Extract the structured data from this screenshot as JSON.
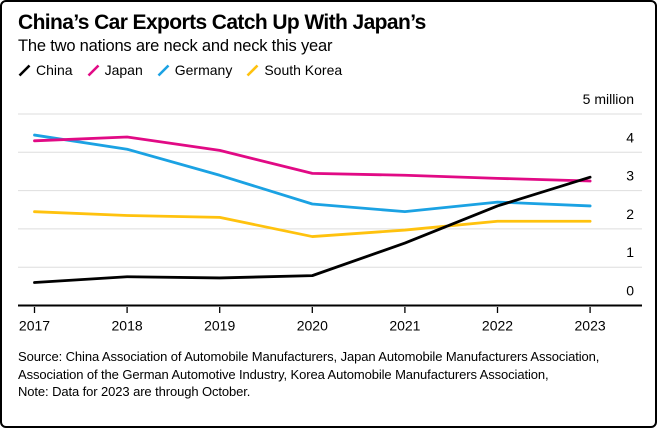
{
  "card": {
    "title": "China’s Car Exports Catch Up With Japan’s",
    "subtitle": "The two nations are neck and neck this year",
    "source": "Source: China Association of Automobile Manufacturers, Japan Automobile Manufacturers Association, Association of the German Automotive Industry, Korea Automobile Manufacturers Association,",
    "note": "Note: Data for 2023 are through October."
  },
  "colors": {
    "china": "#000000",
    "japan": "#E10A85",
    "germany": "#1BA2E3",
    "south_korea": "#FFC20E",
    "gridline": "#DEDEDE",
    "axis": "#000000",
    "text": "#000000",
    "background": "#FFFFFF",
    "border": "#000000"
  },
  "legend": {
    "items": [
      {
        "label": "China",
        "color": "#000000",
        "icon": "slash-icon"
      },
      {
        "label": "Japan",
        "color": "#E10A85",
        "icon": "slash-icon"
      },
      {
        "label": "Germany",
        "color": "#1BA2E3",
        "icon": "slash-icon"
      },
      {
        "label": "South Korea",
        "color": "#FFC20E",
        "icon": "slash-icon"
      }
    ]
  },
  "chart_data": {
    "type": "line",
    "title": "China’s Car Exports Catch Up With Japan’s",
    "subtitle": "The two nations are neck and neck this year",
    "unit": "million vehicles",
    "x": [
      2017,
      2018,
      2019,
      2020,
      2021,
      2022,
      2023
    ],
    "xtick_labels": [
      "2017",
      "2018",
      "2019",
      "2020",
      "2021",
      "2022",
      "2023"
    ],
    "series": [
      {
        "name": "China",
        "color": "#000000",
        "values": [
          0.6,
          0.75,
          0.72,
          0.78,
          1.63,
          2.6,
          3.35
        ]
      },
      {
        "name": "Japan",
        "color": "#E10A85",
        "values": [
          4.3,
          4.4,
          4.05,
          3.45,
          3.4,
          3.32,
          3.25
        ]
      },
      {
        "name": "Germany",
        "color": "#1BA2E3",
        "values": [
          4.45,
          4.08,
          3.4,
          2.65,
          2.45,
          2.7,
          2.6
        ]
      },
      {
        "name": "South Korea",
        "color": "#FFC20E",
        "values": [
          2.45,
          2.35,
          2.3,
          1.8,
          1.97,
          2.2,
          2.2
        ]
      }
    ],
    "ylim": [
      0,
      5
    ],
    "yticks": [
      0,
      1,
      2,
      3,
      4,
      5
    ],
    "ytick_labels": [
      "0",
      "1",
      "2",
      "3",
      "4",
      "5 million"
    ],
    "grid": "horizontal",
    "legend_position": "top-left",
    "axis_label_side": "right",
    "note": "Data for 2023 are through October"
  }
}
